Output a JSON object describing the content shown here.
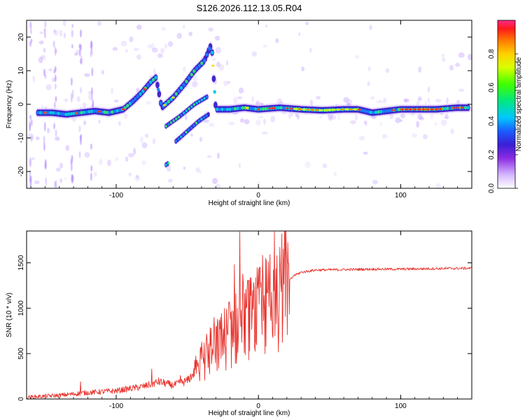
{
  "title": "S126.2026.112.13.05.R04",
  "chart_data": [
    {
      "type": "heatmap",
      "name": "spectrogram",
      "xlabel": "Height of straight line (km)",
      "ylabel": "Frequency (Hz)",
      "xlim": [
        -163,
        150
      ],
      "ylim": [
        -25,
        25
      ],
      "xticks": [
        -100,
        0,
        100
      ],
      "yticks": [
        -20,
        -10,
        0,
        10,
        20
      ],
      "colorbar": {
        "label": "Normalized spectral amplitude",
        "range": [
          0,
          1
        ],
        "ticks": [
          0.0,
          0.2,
          0.4,
          0.6,
          0.8
        ]
      },
      "main_track": [
        [
          -155,
          -2.5
        ],
        [
          -145,
          -2.5
        ],
        [
          -135,
          -3.0
        ],
        [
          -125,
          -2.5
        ],
        [
          -115,
          -2.0
        ],
        [
          -105,
          -2.5
        ],
        [
          -95,
          -1.5
        ],
        [
          -88,
          1.0
        ],
        [
          -82,
          3.5
        ],
        [
          -76,
          6.5
        ],
        [
          -72,
          8.0
        ],
        [
          -68,
          -1.0
        ],
        [
          -60,
          2.0
        ],
        [
          -52,
          6.0
        ],
        [
          -45,
          10.0
        ],
        [
          -38,
          13.0
        ],
        [
          -33,
          18.0
        ],
        [
          -30,
          -1.5
        ],
        [
          -20,
          -1.5
        ],
        [
          -10,
          -1.0
        ],
        [
          0,
          -1.5
        ],
        [
          15,
          -1.0
        ],
        [
          30,
          -1.5
        ],
        [
          45,
          -1.8
        ],
        [
          60,
          -1.5
        ],
        [
          70,
          -1.5
        ],
        [
          80,
          -2.5
        ],
        [
          90,
          -2.0
        ],
        [
          100,
          -1.5
        ],
        [
          110,
          -1.5
        ],
        [
          125,
          -1.5
        ],
        [
          140,
          -1.0
        ],
        [
          148,
          -1.0
        ]
      ],
      "secondary_tracks": [
        [
          [
            -65,
            -6.5
          ],
          [
            -55,
            -3.5
          ],
          [
            -45,
            0.0
          ],
          [
            -35,
            2.5
          ]
        ],
        [
          [
            -58,
            -11.0
          ],
          [
            -50,
            -8.0
          ],
          [
            -42,
            -5.0
          ],
          [
            -35,
            -3.0
          ]
        ],
        [
          [
            -65,
            -18.0
          ],
          [
            -63,
            -17.5
          ]
        ]
      ]
    },
    {
      "type": "line",
      "name": "snr",
      "xlabel": "Height of straight line (km)",
      "ylabel": "SNR (10 * v/v)",
      "xlim": [
        -163,
        150
      ],
      "ylim": [
        0,
        1850
      ],
      "xticks": [
        -100,
        0,
        100
      ],
      "yticks": [
        0,
        500,
        1000,
        1500
      ],
      "color": "#e8302a",
      "envelope": [
        [
          -163,
          20
        ],
        [
          -140,
          40
        ],
        [
          -120,
          70
        ],
        [
          -100,
          90
        ],
        [
          -80,
          140
        ],
        [
          -70,
          190
        ],
        [
          -60,
          150
        ],
        [
          -50,
          200
        ],
        [
          -42,
          350
        ],
        [
          -35,
          480
        ],
        [
          -28,
          600
        ],
        [
          -20,
          720
        ],
        [
          -12,
          820
        ],
        [
          -5,
          900
        ],
        [
          0,
          950
        ],
        [
          5,
          1000
        ],
        [
          10,
          1060
        ],
        [
          15,
          1150
        ],
        [
          20,
          1270
        ],
        [
          25,
          1360
        ],
        [
          30,
          1395
        ],
        [
          40,
          1420
        ],
        [
          60,
          1425
        ],
        [
          80,
          1430
        ],
        [
          100,
          1430
        ],
        [
          120,
          1435
        ],
        [
          150,
          1440
        ]
      ],
      "spikes": [
        [
          -13,
          1840
        ],
        [
          -17,
          1480
        ],
        [
          5,
          1550
        ],
        [
          -125,
          190
        ],
        [
          -75,
          330
        ],
        [
          -55,
          260
        ]
      ]
    }
  ]
}
